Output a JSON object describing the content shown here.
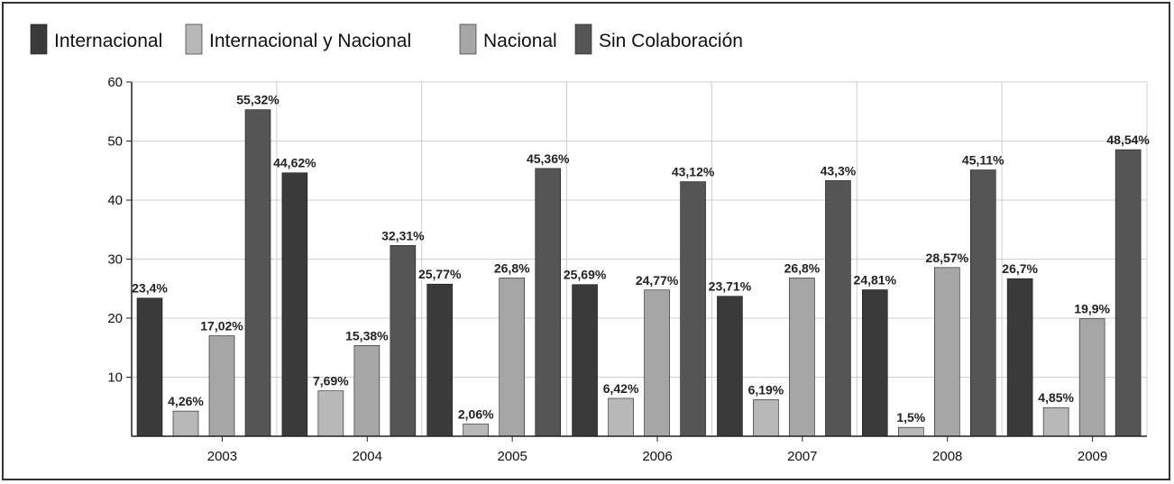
{
  "chart_data": {
    "type": "bar",
    "title": "",
    "xlabel": "",
    "ylabel": "",
    "ylim": [
      0,
      60
    ],
    "yticks": [
      10,
      20,
      30,
      40,
      50,
      60
    ],
    "grid": true,
    "legend_position": "top",
    "categories": [
      "2003",
      "2004",
      "2005",
      "2006",
      "2007",
      "2008",
      "2009"
    ],
    "series": [
      {
        "name": "Internacional",
        "color": "#3a3a3a",
        "values": [
          23.4,
          44.62,
          25.77,
          25.69,
          23.71,
          24.81,
          26.7
        ],
        "labels": [
          "23,4%",
          "44,62%",
          "25,77%",
          "25,69%",
          "23,71%",
          "24,81%",
          "26,7%"
        ]
      },
      {
        "name": "Internacional y Nacional",
        "color": "#b8b8b8",
        "values": [
          4.26,
          7.69,
          2.06,
          6.42,
          6.19,
          1.5,
          4.85
        ],
        "labels": [
          "4,26%",
          "7,69%",
          "2,06%",
          "6,42%",
          "6,19%",
          "1,5%",
          "4,85%"
        ]
      },
      {
        "name": "Nacional",
        "color": "#a6a6a6",
        "values": [
          17.02,
          15.38,
          26.8,
          24.77,
          26.8,
          28.57,
          19.9
        ],
        "labels": [
          "17,02%",
          "15,38%",
          "26,8%",
          "24,77%",
          "26,8%",
          "28,57%",
          "19,9%"
        ]
      },
      {
        "name": "Sin Colaboración",
        "color": "#555555",
        "values": [
          55.32,
          32.31,
          45.36,
          43.12,
          43.3,
          45.11,
          48.54
        ],
        "labels": [
          "55,32%",
          "32,31%",
          "45,36%",
          "43,12%",
          "43,3%",
          "45,11%",
          "48,54%"
        ]
      }
    ]
  }
}
